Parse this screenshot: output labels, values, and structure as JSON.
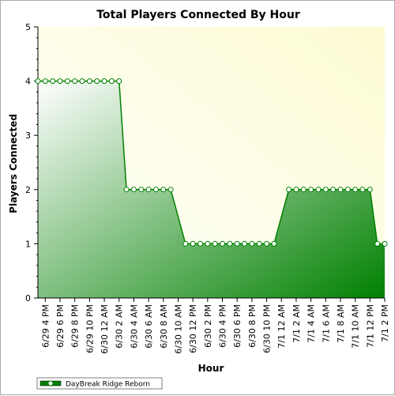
{
  "colors": {
    "plot_bg_light": "#ffffff",
    "plot_bg_yellow": "#fdfbd2",
    "area_dark": "#008000",
    "area_light": "#ffffff",
    "line": "#008000",
    "marker_fill": "#ffffff",
    "axis": "#000000"
  },
  "chart_data": {
    "type": "area",
    "title": "Total Players Connected By Hour",
    "xlabel": "Hour",
    "ylabel": "Players Connected",
    "ylim": [
      0,
      5
    ],
    "yticks": [
      "0",
      "1",
      "2",
      "3",
      "4",
      "5"
    ],
    "grid": false,
    "legend_position": "bottom-left",
    "xlim": [
      "2020-06-29T15:00",
      "2020-07-01T14:00"
    ],
    "x_tick_labels": [
      {
        "at": "2020-06-29T16:00",
        "label": "6/29 4 PM"
      },
      {
        "at": "2020-06-29T18:00",
        "label": "6/29 6 PM"
      },
      {
        "at": "2020-06-29T20:00",
        "label": "6/29 8 PM"
      },
      {
        "at": "2020-06-29T22:00",
        "label": "6/29 10 PM"
      },
      {
        "at": "2020-06-30T00:00",
        "label": "6/30 12 AM"
      },
      {
        "at": "2020-06-30T02:00",
        "label": "6/30 2 AM"
      },
      {
        "at": "2020-06-30T04:00",
        "label": "6/30 4 AM"
      },
      {
        "at": "2020-06-30T06:00",
        "label": "6/30 6 AM"
      },
      {
        "at": "2020-06-30T08:00",
        "label": "6/30 8 AM"
      },
      {
        "at": "2020-06-30T10:00",
        "label": "6/30 10 AM"
      },
      {
        "at": "2020-06-30T12:00",
        "label": "6/30 12 PM"
      },
      {
        "at": "2020-06-30T14:00",
        "label": "6/30 2 PM"
      },
      {
        "at": "2020-06-30T16:00",
        "label": "6/30 4 PM"
      },
      {
        "at": "2020-06-30T18:00",
        "label": "6/30 6 PM"
      },
      {
        "at": "2020-06-30T20:00",
        "label": "6/30 8 PM"
      },
      {
        "at": "2020-06-30T22:00",
        "label": "6/30 10 PM"
      },
      {
        "at": "2020-07-01T00:00",
        "label": "7/1 12 AM"
      },
      {
        "at": "2020-07-01T02:00",
        "label": "7/1 2 AM"
      },
      {
        "at": "2020-07-01T04:00",
        "label": "7/1 4 AM"
      },
      {
        "at": "2020-07-01T06:00",
        "label": "7/1 6 AM"
      },
      {
        "at": "2020-07-01T08:00",
        "label": "7/1 8 AM"
      },
      {
        "at": "2020-07-01T10:00",
        "label": "7/1 10 AM"
      },
      {
        "at": "2020-07-01T12:00",
        "label": "7/1 12 PM"
      },
      {
        "at": "2020-07-01T14:00",
        "label": "7/1 2 PM"
      }
    ],
    "series": [
      {
        "name": "DayBreak Ridge Reborn",
        "points": [
          {
            "x": "2020-06-29T15:00",
            "y": 4
          },
          {
            "x": "2020-06-29T16:00",
            "y": 4
          },
          {
            "x": "2020-06-29T17:00",
            "y": 4
          },
          {
            "x": "2020-06-29T18:00",
            "y": 4
          },
          {
            "x": "2020-06-29T19:00",
            "y": 4
          },
          {
            "x": "2020-06-29T20:00",
            "y": 4
          },
          {
            "x": "2020-06-29T21:00",
            "y": 4
          },
          {
            "x": "2020-06-29T22:00",
            "y": 4
          },
          {
            "x": "2020-06-29T23:00",
            "y": 4
          },
          {
            "x": "2020-06-30T00:00",
            "y": 4
          },
          {
            "x": "2020-06-30T01:00",
            "y": 4
          },
          {
            "x": "2020-06-30T02:00",
            "y": 4
          },
          {
            "x": "2020-06-30T03:00",
            "y": 2
          },
          {
            "x": "2020-06-30T04:00",
            "y": 2
          },
          {
            "x": "2020-06-30T05:00",
            "y": 2
          },
          {
            "x": "2020-06-30T06:00",
            "y": 2
          },
          {
            "x": "2020-06-30T07:00",
            "y": 2
          },
          {
            "x": "2020-06-30T08:00",
            "y": 2
          },
          {
            "x": "2020-06-30T09:00",
            "y": 2
          },
          {
            "x": "2020-06-30T11:00",
            "y": 1
          },
          {
            "x": "2020-06-30T12:00",
            "y": 1
          },
          {
            "x": "2020-06-30T13:00",
            "y": 1
          },
          {
            "x": "2020-06-30T14:00",
            "y": 1
          },
          {
            "x": "2020-06-30T15:00",
            "y": 1
          },
          {
            "x": "2020-06-30T16:00",
            "y": 1
          },
          {
            "x": "2020-06-30T17:00",
            "y": 1
          },
          {
            "x": "2020-06-30T18:00",
            "y": 1
          },
          {
            "x": "2020-06-30T19:00",
            "y": 1
          },
          {
            "x": "2020-06-30T20:00",
            "y": 1
          },
          {
            "x": "2020-06-30T21:00",
            "y": 1
          },
          {
            "x": "2020-06-30T22:00",
            "y": 1
          },
          {
            "x": "2020-06-30T23:00",
            "y": 1
          },
          {
            "x": "2020-07-01T01:00",
            "y": 2
          },
          {
            "x": "2020-07-01T02:00",
            "y": 2
          },
          {
            "x": "2020-07-01T03:00",
            "y": 2
          },
          {
            "x": "2020-07-01T04:00",
            "y": 2
          },
          {
            "x": "2020-07-01T05:00",
            "y": 2
          },
          {
            "x": "2020-07-01T06:00",
            "y": 2
          },
          {
            "x": "2020-07-01T07:00",
            "y": 2
          },
          {
            "x": "2020-07-01T08:00",
            "y": 2
          },
          {
            "x": "2020-07-01T09:00",
            "y": 2
          },
          {
            "x": "2020-07-01T10:00",
            "y": 2
          },
          {
            "x": "2020-07-01T11:00",
            "y": 2
          },
          {
            "x": "2020-07-01T12:00",
            "y": 2
          },
          {
            "x": "2020-07-01T13:00",
            "y": 1
          },
          {
            "x": "2020-07-01T14:00",
            "y": 1
          }
        ]
      }
    ]
  }
}
